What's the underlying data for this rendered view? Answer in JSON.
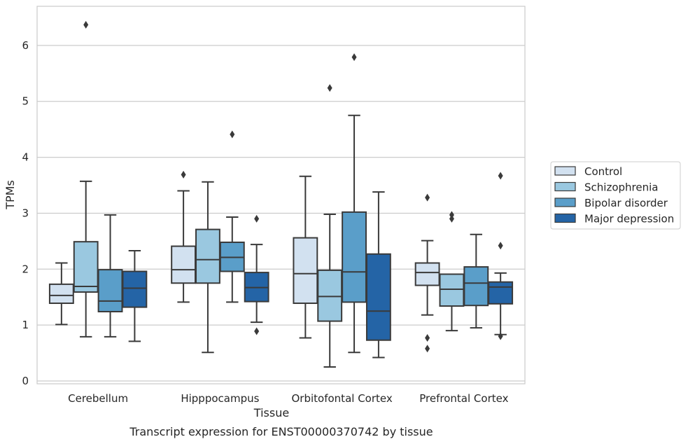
{
  "caption": "Transcript expression for ENST00000370742 by tissue",
  "chart_data": {
    "type": "box",
    "xlabel": "Tissue",
    "ylabel": "TPMs",
    "ylim": [
      -0.05,
      6.7
    ],
    "yticks": [
      0,
      1,
      2,
      3,
      4,
      5,
      6
    ],
    "grid": true,
    "legend_position": "right",
    "categories": [
      "Cerebellum",
      "Hipppocampus",
      "Orbitofontal Cortex",
      "Prefrontal Cortex"
    ],
    "series": [
      {
        "name": "Control",
        "color": "#d2e1f0",
        "boxes": [
          {
            "whisker_low": 1.01,
            "q1": 1.39,
            "median": 1.53,
            "q3": 1.73,
            "whisker_high": 2.11,
            "outliers": []
          },
          {
            "whisker_low": 1.41,
            "q1": 1.75,
            "median": 1.99,
            "q3": 2.41,
            "whisker_high": 3.4,
            "outliers": [
              3.69
            ]
          },
          {
            "whisker_low": 0.77,
            "q1": 1.39,
            "median": 1.92,
            "q3": 2.56,
            "whisker_high": 3.66,
            "outliers": []
          },
          {
            "whisker_low": 1.18,
            "q1": 1.71,
            "median": 1.94,
            "q3": 2.11,
            "whisker_high": 2.51,
            "outliers": [
              0.77,
              0.58,
              3.28
            ]
          }
        ]
      },
      {
        "name": "Schizophrenia",
        "color": "#9ac8e0",
        "boxes": [
          {
            "whisker_low": 0.79,
            "q1": 1.59,
            "median": 1.69,
            "q3": 2.49,
            "whisker_high": 3.57,
            "outliers": [
              6.37
            ]
          },
          {
            "whisker_low": 0.51,
            "q1": 1.75,
            "median": 2.17,
            "q3": 2.71,
            "whisker_high": 3.56,
            "outliers": []
          },
          {
            "whisker_low": 0.25,
            "q1": 1.07,
            "median": 1.51,
            "q3": 1.98,
            "whisker_high": 2.98,
            "outliers": [
              5.24
            ]
          },
          {
            "whisker_low": 0.9,
            "q1": 1.34,
            "median": 1.64,
            "q3": 1.91,
            "whisker_high": 1.91,
            "outliers": [
              2.9,
              2.97
            ]
          }
        ]
      },
      {
        "name": "Bipolar disorder",
        "color": "#5a9ec9",
        "boxes": [
          {
            "whisker_low": 0.79,
            "q1": 1.24,
            "median": 1.43,
            "q3": 1.99,
            "whisker_high": 2.97,
            "outliers": []
          },
          {
            "whisker_low": 1.41,
            "q1": 1.96,
            "median": 2.21,
            "q3": 2.48,
            "whisker_high": 2.93,
            "outliers": [
              4.41
            ]
          },
          {
            "whisker_low": 0.51,
            "q1": 1.41,
            "median": 1.95,
            "q3": 3.02,
            "whisker_high": 4.75,
            "outliers": [
              5.79
            ]
          },
          {
            "whisker_low": 0.95,
            "q1": 1.35,
            "median": 1.75,
            "q3": 2.04,
            "whisker_high": 2.62,
            "outliers": []
          }
        ]
      },
      {
        "name": "Major depression",
        "color": "#2464a6",
        "boxes": [
          {
            "whisker_low": 0.71,
            "q1": 1.32,
            "median": 1.66,
            "q3": 1.96,
            "whisker_high": 2.33,
            "outliers": []
          },
          {
            "whisker_low": 1.05,
            "q1": 1.42,
            "median": 1.67,
            "q3": 1.94,
            "whisker_high": 2.44,
            "outliers": [
              0.89,
              2.9
            ]
          },
          {
            "whisker_low": 0.42,
            "q1": 0.73,
            "median": 1.25,
            "q3": 2.27,
            "whisker_high": 3.38,
            "outliers": []
          },
          {
            "whisker_low": 0.83,
            "q1": 1.38,
            "median": 1.68,
            "q3": 1.77,
            "whisker_high": 1.93,
            "outliers": [
              0.8,
              2.42,
              3.67
            ]
          }
        ]
      }
    ]
  }
}
